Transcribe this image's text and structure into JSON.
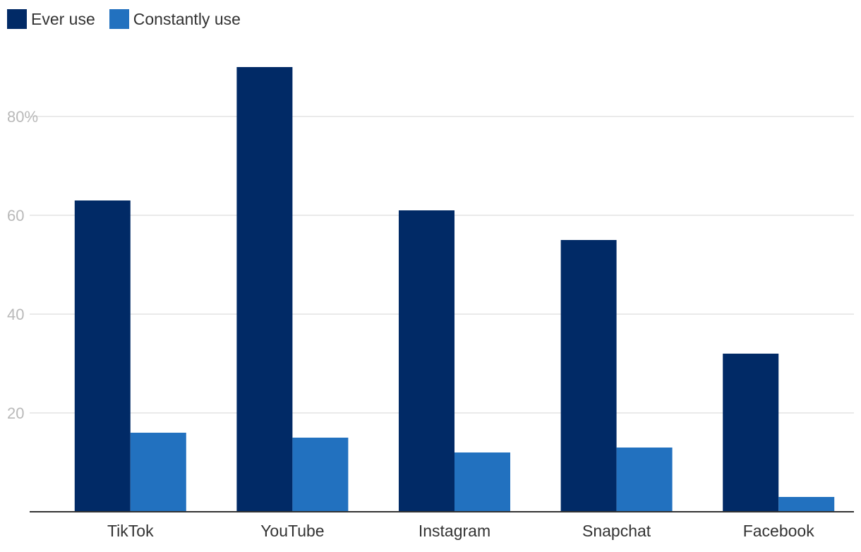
{
  "chart_data": {
    "type": "bar",
    "title": "",
    "xlabel": "",
    "ylabel": "",
    "categories": [
      "TikTok",
      "YouTube",
      "Instagram",
      "Snapchat",
      "Facebook"
    ],
    "series": [
      {
        "name": "Ever use",
        "values": [
          63,
          90,
          61,
          55,
          32
        ],
        "color": "#012a66"
      },
      {
        "name": "Constantly use",
        "values": [
          16,
          15,
          12,
          13,
          3
        ],
        "color": "#2271bf"
      }
    ],
    "ylim": [
      0,
      95
    ],
    "y_ticks": [
      {
        "value": 20,
        "label": "20"
      },
      {
        "value": 40,
        "label": "40"
      },
      {
        "value": 60,
        "label": "60"
      },
      {
        "value": 80,
        "label": "80%"
      }
    ],
    "grid": true,
    "legend_position": "top-left"
  }
}
